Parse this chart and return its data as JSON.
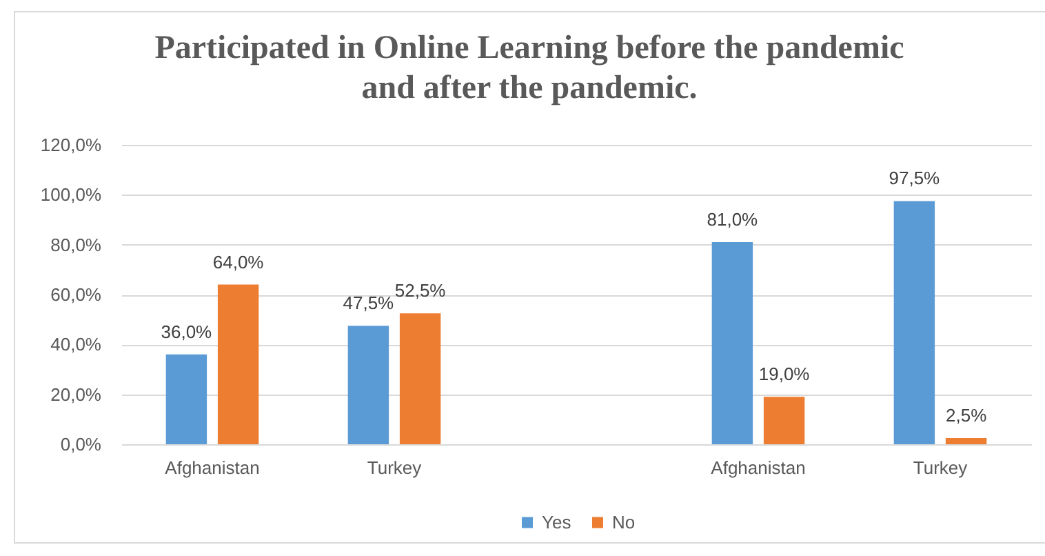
{
  "chart_data": {
    "type": "bar",
    "title": "Participated in Online Learning before the pandemic and after the pandemic.",
    "categories": [
      "Afghanistan",
      "Turkey",
      null,
      "Afghanistan",
      "Turkey"
    ],
    "series": [
      {
        "name": "Yes",
        "color": "#5b9bd5",
        "values": [
          36,
          47.5,
          null,
          81,
          97.5
        ],
        "value_labels": [
          "36,0%",
          "47,5%",
          null,
          "81,0%",
          "97,5%"
        ]
      },
      {
        "name": "No",
        "color": "#ed7d31",
        "values": [
          64,
          52.5,
          null,
          19,
          2.5
        ],
        "value_labels": [
          "64,0%",
          "52,5%",
          null,
          "19,0%",
          "2,5%"
        ]
      }
    ],
    "ylim": [
      0,
      120
    ],
    "yticks": [
      {
        "value": 0,
        "label": "0,0%"
      },
      {
        "value": 20,
        "label": "20,0%"
      },
      {
        "value": 40,
        "label": "40,0%"
      },
      {
        "value": 60,
        "label": "60,0%"
      },
      {
        "value": 80,
        "label": "80,0%"
      },
      {
        "value": 100,
        "label": "100,0%"
      },
      {
        "value": 120,
        "label": "120,0%"
      }
    ],
    "grid": "y",
    "legend": "bottom"
  }
}
